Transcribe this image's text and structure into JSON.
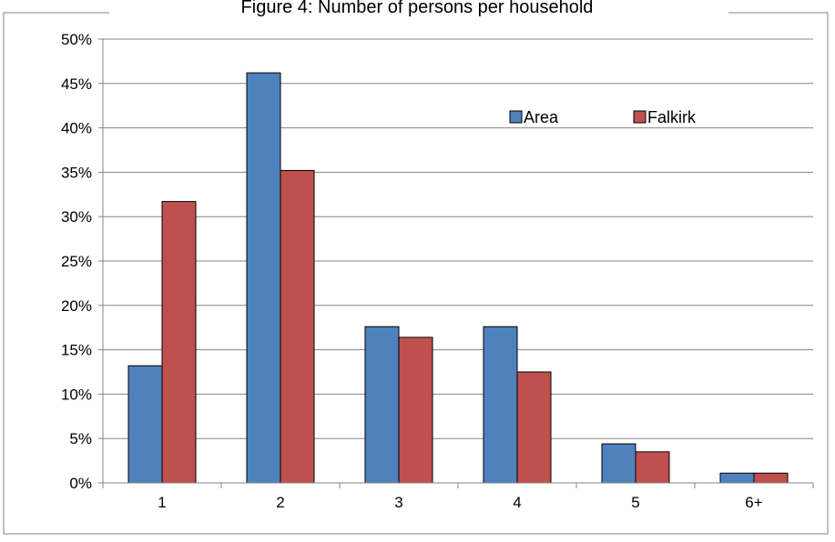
{
  "chart_data": {
    "type": "bar",
    "title": "Figure 4: Number of persons per household",
    "categories": [
      "1",
      "2",
      "3",
      "4",
      "5",
      "6+"
    ],
    "series": [
      {
        "name": "Area",
        "color": "#4F81BD",
        "values": [
          13.2,
          46.2,
          17.6,
          17.6,
          4.4,
          1.1
        ]
      },
      {
        "name": "Falkirk",
        "color": "#C0504D",
        "values": [
          31.7,
          35.2,
          16.4,
          12.5,
          3.5,
          1.1
        ]
      }
    ],
    "ylim": [
      0,
      50
    ],
    "yticks": [
      0,
      5,
      10,
      15,
      20,
      25,
      30,
      35,
      40,
      45,
      50
    ],
    "ytick_labels": [
      "0%",
      "5%",
      "10%",
      "15%",
      "20%",
      "25%",
      "30%",
      "35%",
      "40%",
      "45%",
      "50%"
    ],
    "grid": true,
    "legend_position": "top-right",
    "xlabel": "",
    "ylabel": ""
  }
}
